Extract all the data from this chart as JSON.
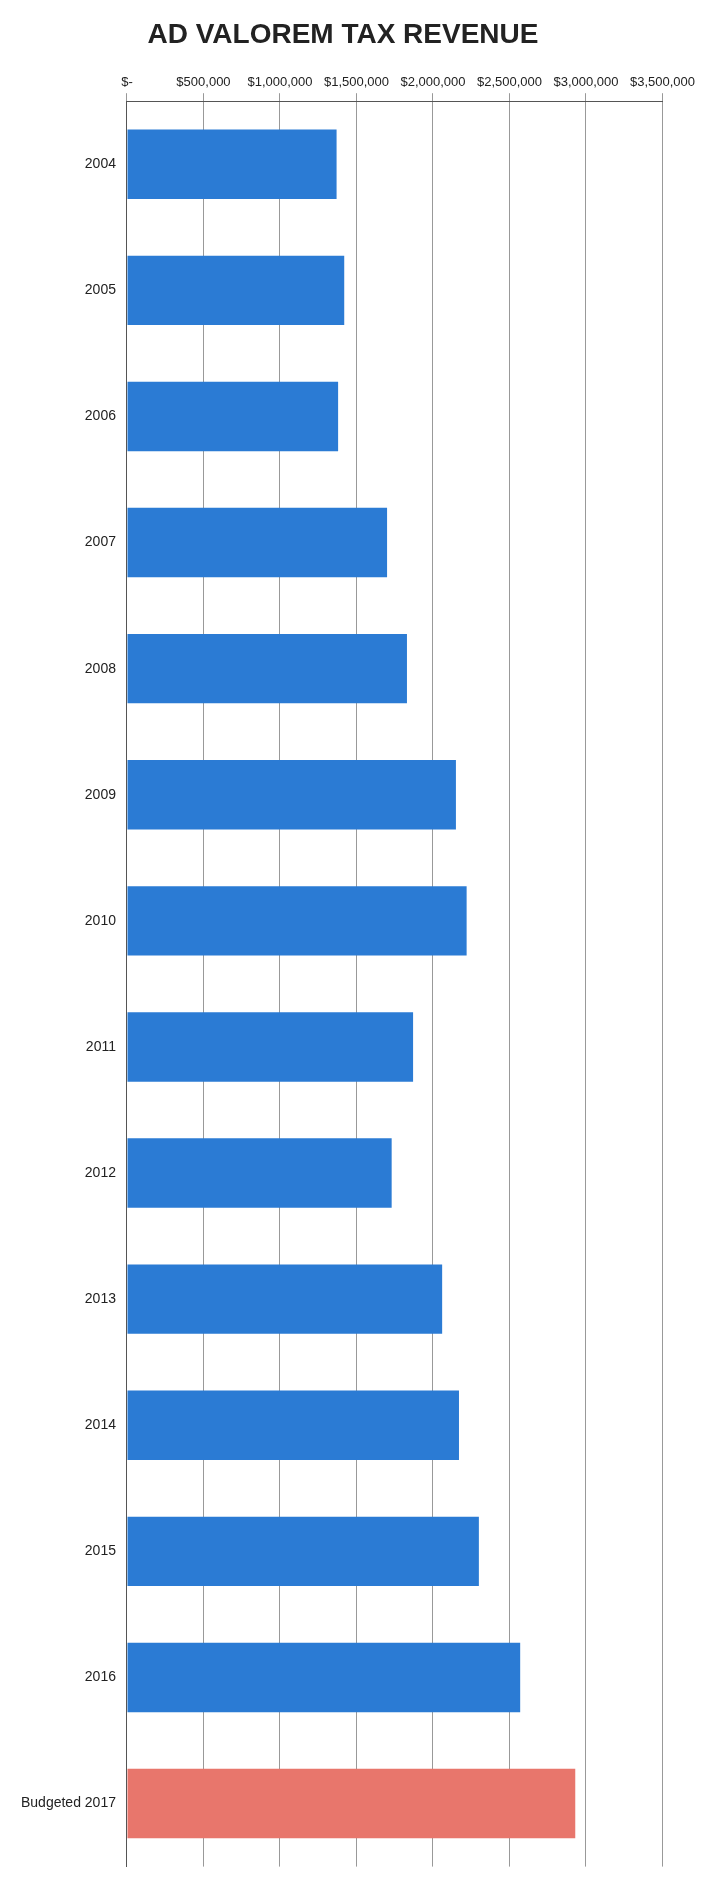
{
  "chart_data": {
    "type": "bar",
    "orientation": "horizontal",
    "title": "AD VALOREM TAX REVENUE",
    "categories": [
      "2004",
      "2005",
      "2006",
      "2007",
      "2008",
      "2009",
      "2010",
      "2011",
      "2012",
      "2013",
      "2014",
      "2015",
      "2016",
      "Budgeted 2017"
    ],
    "values": [
      1370000,
      1420000,
      1380000,
      1700000,
      1830000,
      2150000,
      2220000,
      1870000,
      1730000,
      2060000,
      2170000,
      2300000,
      2570000,
      2930000
    ],
    "colors": [
      "#2b7bd4",
      "#2b7bd4",
      "#2b7bd4",
      "#2b7bd4",
      "#2b7bd4",
      "#2b7bd4",
      "#2b7bd4",
      "#2b7bd4",
      "#2b7bd4",
      "#2b7bd4",
      "#2b7bd4",
      "#2b7bd4",
      "#2b7bd4",
      "#e8766c"
    ],
    "xlim": [
      0,
      3500000
    ],
    "xticks": [
      {
        "value": 0,
        "label": "$-"
      },
      {
        "value": 500000,
        "label": "$500,000"
      },
      {
        "value": 1000000,
        "label": "$1,000,000"
      },
      {
        "value": 1500000,
        "label": "$1,500,000"
      },
      {
        "value": 2000000,
        "label": "$2,000,000"
      },
      {
        "value": 2500000,
        "label": "$2,500,000"
      },
      {
        "value": 3000000,
        "label": "$3,000,000"
      },
      {
        "value": 3500000,
        "label": "$3,500,000"
      }
    ],
    "grid": "x",
    "legend": false
  }
}
